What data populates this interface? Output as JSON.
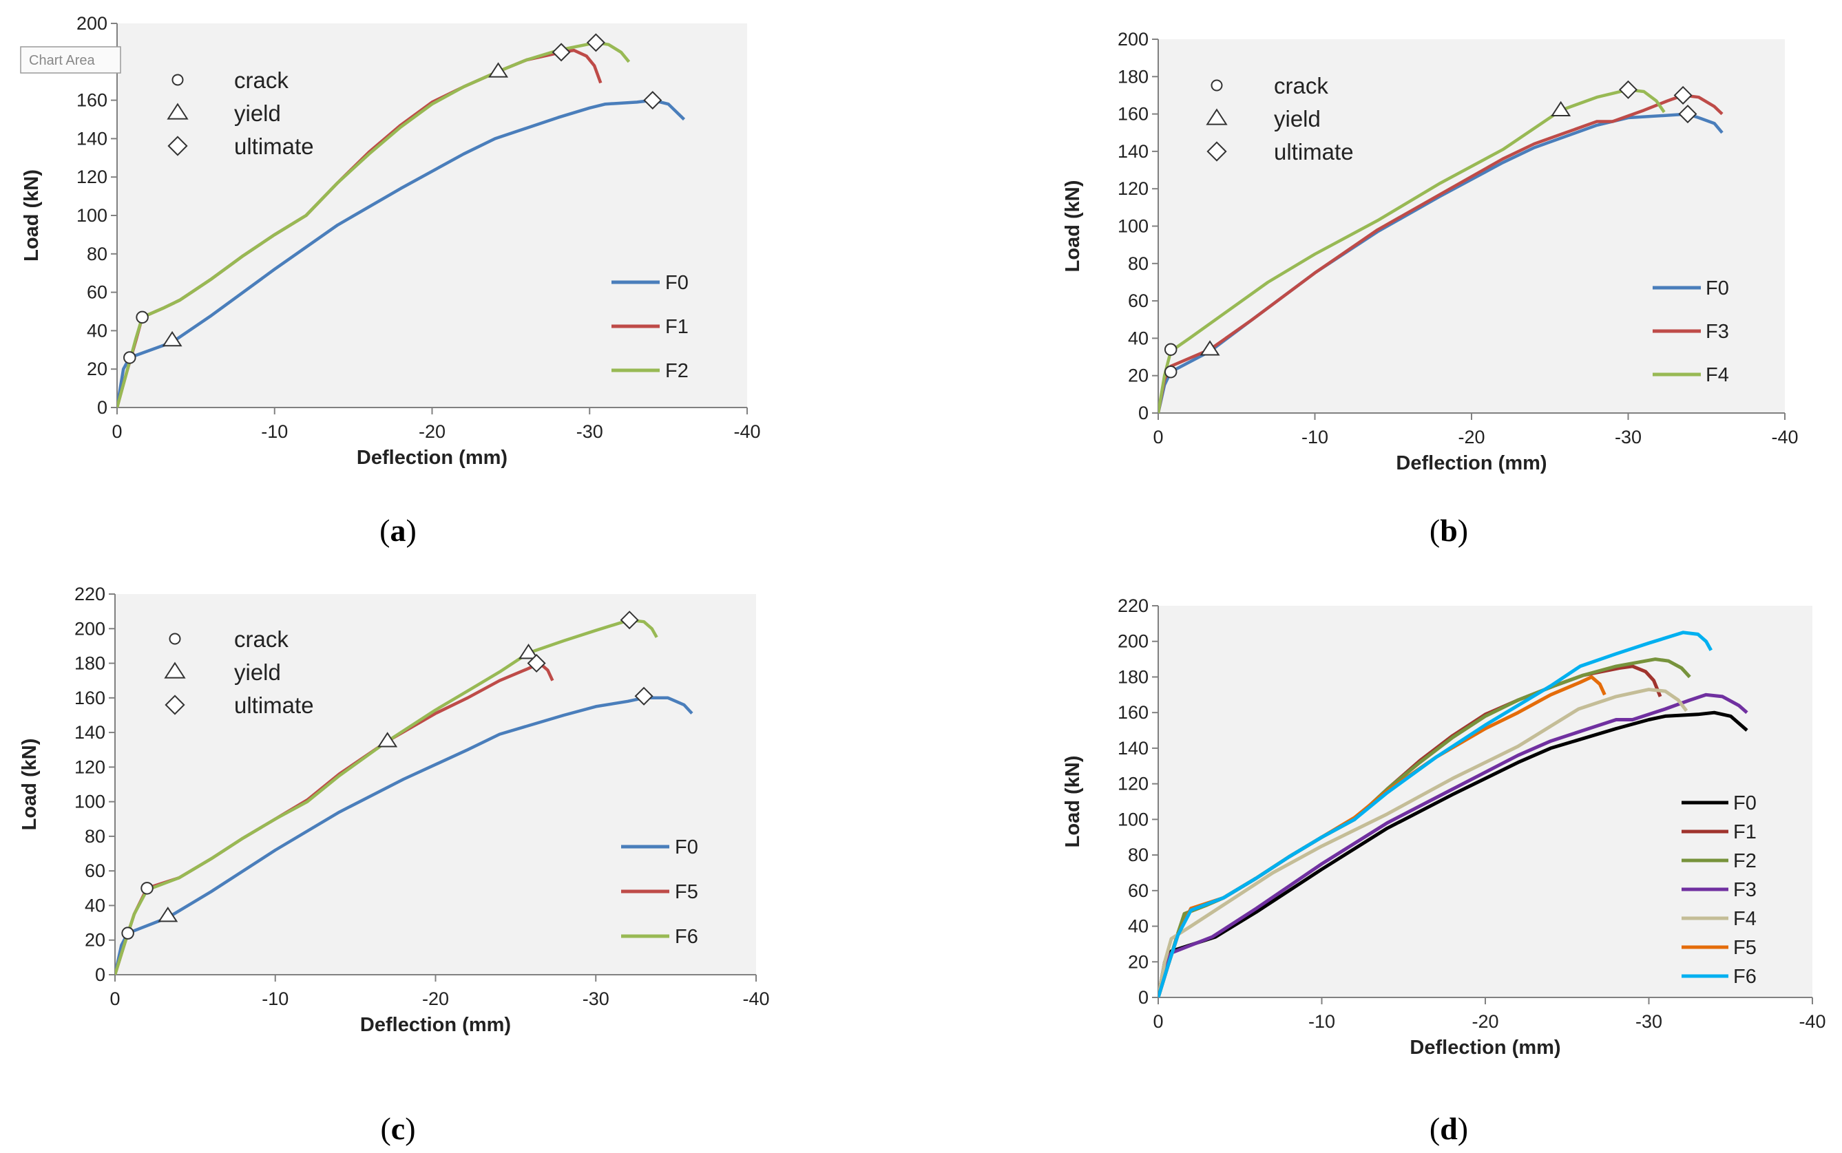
{
  "colors": {
    "F0": "#4a7ebb",
    "F1": "#be4b48",
    "F2": "#98b954",
    "F3": "#be4b48",
    "F4": "#98b954",
    "F5": "#be4b48",
    "F6": "#98b954",
    "d_F0": "#000000",
    "d_F1": "#a0342e",
    "d_F2": "#77933c",
    "d_F3": "#7030a0",
    "d_F4": "#c4bd97",
    "d_F5": "#e46c0a",
    "d_F6": "#00b0f0"
  },
  "chart_data": [
    {
      "id": "a",
      "panel_label": "a",
      "type": "line",
      "xlabel": "Deflection (mm)",
      "ylabel": "Load (kN)",
      "xlim": [
        0,
        -40
      ],
      "ylim": [
        0,
        200
      ],
      "xticks": [
        0,
        -10,
        -20,
        -30,
        -40
      ],
      "yticks": [
        0,
        20,
        40,
        60,
        80,
        100,
        120,
        140,
        160,
        180,
        200
      ],
      "marker_legend": [
        {
          "symbol": "circle",
          "label": "crack"
        },
        {
          "symbol": "triangle",
          "label": "yield"
        },
        {
          "symbol": "diamond",
          "label": "ultimate"
        }
      ],
      "chart_area_tooltip": "Chart Area",
      "series": [
        {
          "name": "F0",
          "color_key": "F0",
          "x": [
            0,
            -0.4,
            -0.8,
            -3.5,
            -6,
            -10,
            -14,
            -18,
            -22,
            -24,
            -28,
            -30,
            -31,
            -33,
            -34,
            -35,
            -36
          ],
          "y": [
            0,
            20,
            26,
            34,
            48,
            72,
            95,
            114,
            132,
            140,
            151,
            156,
            158,
            159,
            160,
            158,
            150
          ]
        },
        {
          "name": "F1",
          "color_key": "F1",
          "x": [
            0,
            -0.6,
            -1.2,
            -1.6,
            -3,
            -4,
            -6,
            -8,
            -10,
            -12,
            -14,
            -16,
            -18,
            -20,
            -22,
            -24.2,
            -26,
            -28.2,
            -29,
            -29.8,
            -30.3,
            -30.7
          ],
          "y": [
            0,
            18,
            35,
            47,
            52,
            56,
            67,
            79,
            90,
            100,
            117,
            133,
            147,
            159,
            167,
            175,
            181,
            185,
            186,
            183,
            178,
            169
          ]
        },
        {
          "name": "F2",
          "color_key": "F2",
          "x": [
            0,
            -0.6,
            -1.2,
            -1.6,
            -3,
            -4,
            -6,
            -8,
            -10,
            -12,
            -14,
            -16,
            -18,
            -20,
            -22,
            -24.2,
            -26,
            -28,
            -30.4,
            -31.2,
            -32,
            -32.5
          ],
          "y": [
            0,
            18,
            36,
            47,
            52,
            56,
            67,
            79,
            90,
            100,
            117,
            132,
            146,
            158,
            167,
            175,
            181,
            186,
            190,
            189,
            185,
            180
          ]
        }
      ],
      "markers": [
        {
          "symbol": "circle",
          "x": -0.8,
          "y": 26
        },
        {
          "symbol": "circle",
          "x": -1.6,
          "y": 47
        },
        {
          "symbol": "triangle",
          "x": -3.5,
          "y": 35
        },
        {
          "symbol": "triangle",
          "x": -24.2,
          "y": 175
        },
        {
          "symbol": "diamond",
          "x": -28.2,
          "y": 185
        },
        {
          "symbol": "diamond",
          "x": -30.4,
          "y": 190
        },
        {
          "symbol": "diamond",
          "x": -34,
          "y": 160
        }
      ]
    },
    {
      "id": "b",
      "panel_label": "b",
      "type": "line",
      "xlabel": "Deflection (mm)",
      "ylabel": "Load (kN)",
      "xlim": [
        0,
        -40
      ],
      "ylim": [
        0,
        200
      ],
      "xticks": [
        0,
        -10,
        -20,
        -30,
        -40
      ],
      "yticks": [
        0,
        20,
        40,
        60,
        80,
        100,
        120,
        140,
        160,
        180,
        200
      ],
      "marker_legend": [
        {
          "symbol": "circle",
          "label": "crack"
        },
        {
          "symbol": "triangle",
          "label": "yield"
        },
        {
          "symbol": "diamond",
          "label": "ultimate"
        }
      ],
      "series": [
        {
          "name": "F0",
          "color_key": "F0",
          "x": [
            0,
            -0.4,
            -0.8,
            -3.3,
            -6,
            -10,
            -14,
            -18,
            -22,
            -24,
            -28,
            -30,
            -32,
            -33.8,
            -34.5,
            -35.5,
            -36
          ],
          "y": [
            0,
            15,
            22,
            33,
            50,
            75,
            97,
            116,
            134,
            142,
            154,
            158,
            159,
            160,
            158,
            155,
            150
          ]
        },
        {
          "name": "F3",
          "color_key": "F3",
          "x": [
            0,
            -0.4,
            -0.8,
            -3.3,
            -6,
            -10,
            -14,
            -18,
            -22,
            -24,
            -26,
            -28,
            -29,
            -31,
            -32.5,
            -33.5,
            -34.5,
            -35.5,
            -36
          ],
          "y": [
            0,
            18,
            25,
            34,
            50,
            75,
            98,
            117,
            136,
            144,
            150,
            156,
            156,
            162,
            167,
            170,
            169,
            164,
            160
          ]
        },
        {
          "name": "F4",
          "color_key": "F4",
          "x": [
            0,
            -0.4,
            -0.8,
            -2,
            -4,
            -7,
            -10,
            -14,
            -18,
            -22,
            -25.7,
            -28,
            -30,
            -31,
            -31.8,
            -32.3
          ],
          "y": [
            0,
            20,
            33,
            40,
            52,
            70,
            85,
            103,
            123,
            141,
            162,
            169,
            173,
            172,
            167,
            161
          ]
        }
      ],
      "markers": [
        {
          "symbol": "circle",
          "x": -0.8,
          "y": 22
        },
        {
          "symbol": "circle",
          "x": -0.8,
          "y": 34
        },
        {
          "symbol": "triangle",
          "x": -3.3,
          "y": 34
        },
        {
          "symbol": "triangle",
          "x": -25.7,
          "y": 162
        },
        {
          "symbol": "diamond",
          "x": -30,
          "y": 173
        },
        {
          "symbol": "diamond",
          "x": -33.5,
          "y": 170
        },
        {
          "symbol": "diamond",
          "x": -33.8,
          "y": 160
        }
      ]
    },
    {
      "id": "c",
      "panel_label": "c",
      "type": "line",
      "xlabel": "Deflection (mm)",
      "ylabel": "Load (kN)",
      "xlim": [
        0,
        -40
      ],
      "ylim": [
        0,
        220
      ],
      "xticks": [
        0,
        -10,
        -20,
        -30,
        -40
      ],
      "yticks": [
        0,
        20,
        40,
        60,
        80,
        100,
        120,
        140,
        160,
        180,
        200,
        220
      ],
      "marker_legend": [
        {
          "symbol": "circle",
          "label": "crack"
        },
        {
          "symbol": "triangle",
          "label": "yield"
        },
        {
          "symbol": "diamond",
          "label": "ultimate"
        }
      ],
      "series": [
        {
          "name": "F0",
          "color_key": "F0",
          "x": [
            0,
            -0.4,
            -0.8,
            -3.3,
            -6,
            -10,
            -14,
            -18,
            -22,
            -24,
            -28,
            -30,
            -32,
            -33,
            -34.5,
            -35.5,
            -36
          ],
          "y": [
            0,
            17,
            24,
            33,
            48,
            72,
            94,
            113,
            130,
            139,
            150,
            155,
            158,
            160,
            160,
            156,
            151
          ]
        },
        {
          "name": "F5",
          "color_key": "F5",
          "x": [
            0,
            -0.6,
            -1.2,
            -2,
            -4,
            -6,
            -8,
            -10,
            -12,
            -14,
            -17,
            -20,
            -22,
            -24,
            -25.8,
            -26.5,
            -27,
            -27.3
          ],
          "y": [
            0,
            18,
            35,
            50,
            56,
            67,
            79,
            90,
            101,
            116,
            135,
            151,
            160,
            170,
            177,
            180,
            176,
            170
          ]
        },
        {
          "name": "F6",
          "color_key": "F6",
          "x": [
            0,
            -0.6,
            -1.2,
            -2,
            -4,
            -6,
            -8,
            -10,
            -12,
            -14,
            -17,
            -20,
            -22,
            -24,
            -25.8,
            -28,
            -30,
            -32.1,
            -33,
            -33.5,
            -33.8
          ],
          "y": [
            0,
            18,
            35,
            49,
            56,
            67,
            79,
            90,
            100,
            115,
            135,
            153,
            164,
            175,
            186,
            193,
            199,
            205,
            204,
            200,
            195
          ]
        }
      ],
      "markers": [
        {
          "symbol": "circle",
          "x": -0.8,
          "y": 24
        },
        {
          "symbol": "circle",
          "x": -2,
          "y": 50
        },
        {
          "symbol": "triangle",
          "x": -3.3,
          "y": 34
        },
        {
          "symbol": "triangle",
          "x": -17,
          "y": 135
        },
        {
          "symbol": "triangle",
          "x": -25.8,
          "y": 186
        },
        {
          "symbol": "diamond",
          "x": -26.3,
          "y": 180
        },
        {
          "symbol": "diamond",
          "x": -32.1,
          "y": 205
        },
        {
          "symbol": "diamond",
          "x": -33,
          "y": 161
        }
      ]
    },
    {
      "id": "d",
      "panel_label": "d",
      "type": "line",
      "xlabel": "Deflection (mm)",
      "ylabel": "Load (kN)",
      "xlim": [
        0,
        -40
      ],
      "ylim": [
        0,
        220
      ],
      "xticks": [
        0,
        -10,
        -20,
        -30,
        -40
      ],
      "yticks": [
        0,
        20,
        40,
        60,
        80,
        100,
        120,
        140,
        160,
        180,
        200,
        220
      ],
      "series": [
        {
          "name": "F0",
          "color_key": "d_F0",
          "x": [
            0,
            -0.4,
            -0.8,
            -3.5,
            -6,
            -10,
            -14,
            -18,
            -22,
            -24,
            -28,
            -30,
            -31,
            -33,
            -34,
            -35,
            -36
          ],
          "y": [
            0,
            20,
            26,
            34,
            48,
            72,
            95,
            114,
            132,
            140,
            151,
            156,
            158,
            159,
            160,
            158,
            150
          ]
        },
        {
          "name": "F1",
          "color_key": "d_F1",
          "x": [
            0,
            -0.6,
            -1.2,
            -1.6,
            -3,
            -4,
            -6,
            -8,
            -10,
            -12,
            -14,
            -16,
            -18,
            -20,
            -22,
            -24.2,
            -26,
            -28.2,
            -29,
            -29.8,
            -30.3,
            -30.7
          ],
          "y": [
            0,
            18,
            35,
            47,
            52,
            56,
            67,
            79,
            90,
            100,
            117,
            133,
            147,
            159,
            167,
            175,
            181,
            185,
            186,
            183,
            178,
            169
          ]
        },
        {
          "name": "F2",
          "color_key": "d_F2",
          "x": [
            0,
            -0.6,
            -1.2,
            -1.6,
            -3,
            -4,
            -6,
            -8,
            -10,
            -12,
            -14,
            -16,
            -18,
            -20,
            -22,
            -24.2,
            -26,
            -28,
            -30.4,
            -31.2,
            -32,
            -32.5
          ],
          "y": [
            0,
            18,
            36,
            47,
            52,
            56,
            67,
            79,
            90,
            100,
            117,
            132,
            146,
            158,
            167,
            175,
            181,
            186,
            190,
            189,
            185,
            180
          ]
        },
        {
          "name": "F3",
          "color_key": "d_F3",
          "x": [
            0,
            -0.4,
            -0.8,
            -3.3,
            -6,
            -10,
            -14,
            -18,
            -22,
            -24,
            -26,
            -28,
            -29,
            -31,
            -32.5,
            -33.5,
            -34.5,
            -35.5,
            -36
          ],
          "y": [
            0,
            18,
            25,
            34,
            50,
            75,
            98,
            117,
            136,
            144,
            150,
            156,
            156,
            162,
            167,
            170,
            169,
            164,
            160
          ]
        },
        {
          "name": "F4",
          "color_key": "d_F4",
          "x": [
            0,
            -0.4,
            -0.8,
            -2,
            -4,
            -7,
            -10,
            -14,
            -18,
            -22,
            -25.7,
            -28,
            -30,
            -31,
            -31.8,
            -32.3
          ],
          "y": [
            0,
            20,
            33,
            40,
            52,
            70,
            85,
            103,
            123,
            141,
            162,
            169,
            173,
            172,
            167,
            161
          ]
        },
        {
          "name": "F5",
          "color_key": "d_F5",
          "x": [
            0,
            -0.6,
            -1.2,
            -2,
            -4,
            -6,
            -8,
            -10,
            -12,
            -14,
            -17,
            -20,
            -22,
            -24,
            -25.8,
            -26.5,
            -27,
            -27.3
          ],
          "y": [
            0,
            18,
            35,
            50,
            56,
            67,
            79,
            90,
            101,
            116,
            135,
            151,
            160,
            170,
            177,
            180,
            176,
            170
          ]
        },
        {
          "name": "F6",
          "color_key": "d_F6",
          "x": [
            0,
            -0.6,
            -1.2,
            -2,
            -4,
            -6,
            -8,
            -10,
            -12,
            -14,
            -17,
            -20,
            -22,
            -24,
            -25.8,
            -28,
            -30,
            -32.1,
            -33,
            -33.5,
            -33.8
          ],
          "y": [
            0,
            18,
            35,
            49,
            56,
            67,
            79,
            90,
            100,
            115,
            135,
            153,
            164,
            175,
            186,
            193,
            199,
            205,
            204,
            200,
            195
          ]
        }
      ],
      "markers": []
    }
  ]
}
